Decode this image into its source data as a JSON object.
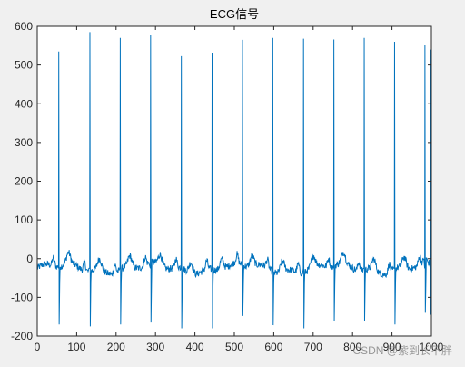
{
  "watermark": "CSDN @紫到长不胖",
  "chart_data": {
    "type": "line",
    "title": "ECG信号",
    "xlabel": "",
    "ylabel": "",
    "xlim": [
      0,
      1000
    ],
    "ylim": [
      -200,
      600
    ],
    "xticks": [
      0,
      100,
      200,
      300,
      400,
      500,
      600,
      700,
      800,
      900,
      1000
    ],
    "yticks": [
      -200,
      -100,
      0,
      100,
      200,
      300,
      400,
      500,
      600
    ],
    "grid": false,
    "line_color": "#0072bd",
    "series": [
      {
        "name": "",
        "beats": [
          {
            "x": 55,
            "peak": 535,
            "trough": -170
          },
          {
            "x": 134,
            "peak": 585,
            "trough": -175
          },
          {
            "x": 211,
            "peak": 570,
            "trough": -170
          },
          {
            "x": 288,
            "peak": 578,
            "trough": -165
          },
          {
            "x": 366,
            "peak": 523,
            "trough": -180
          },
          {
            "x": 444,
            "peak": 532,
            "trough": -180
          },
          {
            "x": 521,
            "peak": 565,
            "trough": -148
          },
          {
            "x": 598,
            "peak": 570,
            "trough": -172
          },
          {
            "x": 676,
            "peak": 568,
            "trough": -180
          },
          {
            "x": 753,
            "peak": 566,
            "trough": -160
          },
          {
            "x": 830,
            "peak": 570,
            "trough": -160
          },
          {
            "x": 907,
            "peak": 560,
            "trough": -170
          },
          {
            "x": 984,
            "peak": 553,
            "trough": -140
          },
          {
            "x": 998,
            "peak": 540,
            "trough": -145
          }
        ],
        "baseline": -25
      }
    ]
  }
}
